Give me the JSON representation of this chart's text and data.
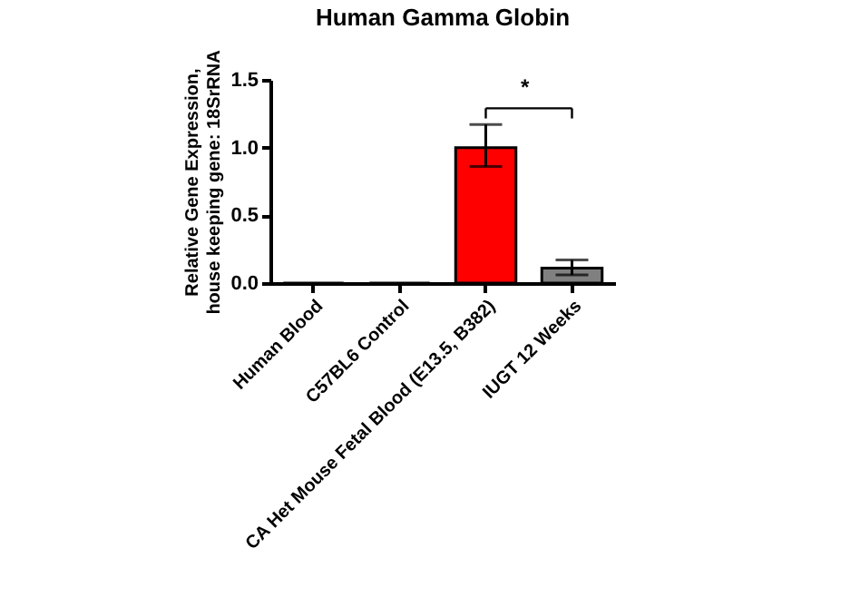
{
  "chart_data": {
    "type": "bar",
    "title": "Human Gamma Globin",
    "ylabel": "Relative Gene Expression,\nhouse keeping gene: 18SrRNA",
    "categories": [
      "Human Blood",
      "C57BL6 Control",
      "CA Het Mouse Fetal Blood (E13.5, B382)",
      "IUGT 12 Weeks"
    ],
    "values": [
      0,
      0,
      1.0,
      0.11
    ],
    "colors": [
      "#000000",
      "#000000",
      "#ff0000",
      "#808080"
    ],
    "errors": [
      null,
      null,
      [
        0.86,
        1.17
      ],
      [
        0.06,
        0.17
      ]
    ],
    "ylim": [
      0,
      1.5
    ],
    "yticks": [
      {
        "value": 0,
        "label": "0.0"
      },
      {
        "value": 0.5,
        "label": "0.5"
      },
      {
        "value": 1,
        "label": "1.0"
      },
      {
        "value": 1.5,
        "label": "1.5"
      }
    ],
    "annotations": [
      "*"
    ],
    "grid": false
  }
}
